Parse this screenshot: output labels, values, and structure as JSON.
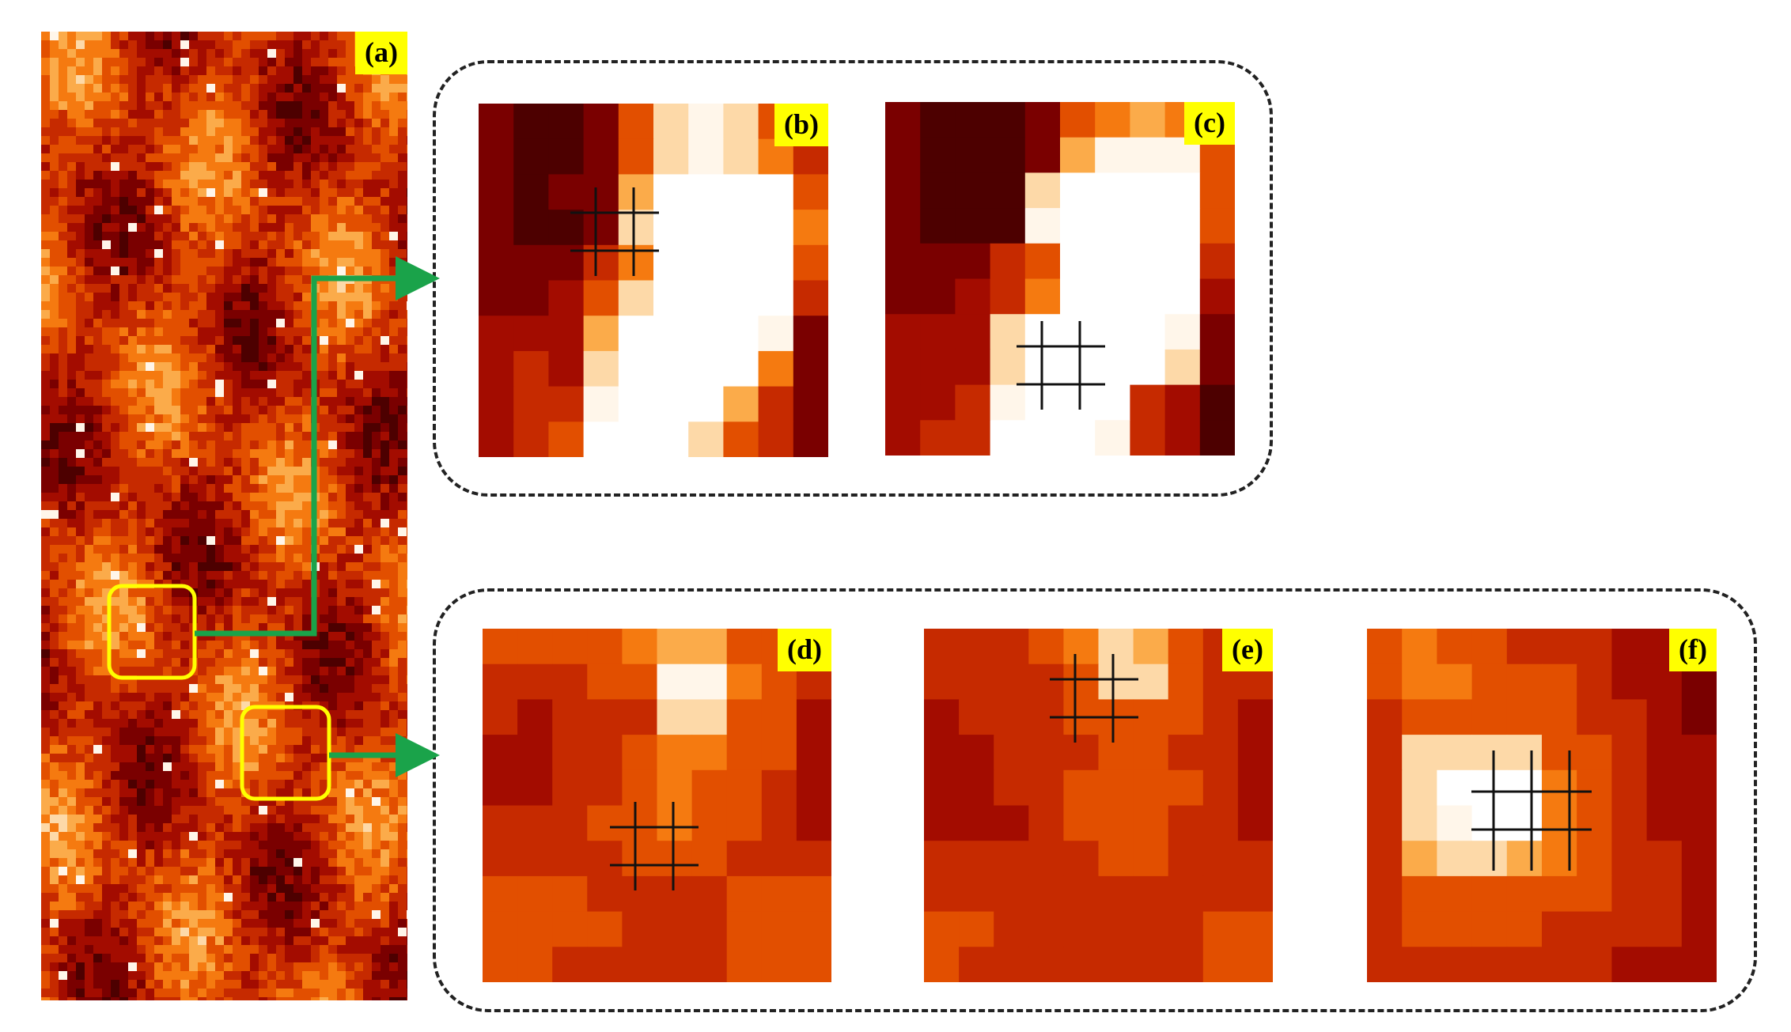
{
  "panels": [
    {
      "id": "a",
      "label": "(a)"
    },
    {
      "id": "b",
      "label": "(b)"
    },
    {
      "id": "c",
      "label": "(c)"
    },
    {
      "id": "d",
      "label": "(d)"
    },
    {
      "id": "e",
      "label": "(e)"
    },
    {
      "id": "f",
      "label": "(f)"
    }
  ],
  "colors": {
    "label_bg": "#ffff00",
    "highlight_box": "#ffff00",
    "arrow": "#1aa34a",
    "dashed_border": "#222222",
    "grid_marker": "#111111",
    "heat_palette": [
      "#4d0000",
      "#7a0000",
      "#a30c00",
      "#c62a00",
      "#e24f00",
      "#f57a10",
      "#fbab4a",
      "#fdd9a8",
      "#fff6ea",
      "#ffffff"
    ]
  },
  "grids": {
    "b": [
      [
        1,
        0,
        0,
        1,
        4,
        7,
        8,
        7,
        4,
        4
      ],
      [
        1,
        0,
        0,
        1,
        4,
        7,
        8,
        7,
        5,
        3
      ],
      [
        1,
        0,
        1,
        1,
        6,
        9,
        9,
        9,
        9,
        4
      ],
      [
        1,
        0,
        0,
        1,
        7,
        9,
        9,
        9,
        9,
        5
      ],
      [
        1,
        1,
        1,
        3,
        5,
        9,
        9,
        9,
        9,
        4
      ],
      [
        1,
        1,
        2,
        4,
        7,
        9,
        9,
        9,
        9,
        3
      ],
      [
        2,
        2,
        2,
        6,
        9,
        9,
        9,
        9,
        8,
        1
      ],
      [
        2,
        3,
        2,
        7,
        9,
        9,
        9,
        9,
        5,
        1
      ],
      [
        2,
        3,
        3,
        8,
        9,
        9,
        9,
        6,
        3,
        1
      ],
      [
        2,
        3,
        4,
        9,
        9,
        9,
        7,
        4,
        3,
        1
      ]
    ],
    "c": [
      [
        1,
        0,
        0,
        0,
        1,
        4,
        5,
        6,
        5,
        4
      ],
      [
        1,
        0,
        0,
        0,
        1,
        6,
        8,
        8,
        8,
        4
      ],
      [
        1,
        0,
        0,
        0,
        7,
        9,
        9,
        9,
        9,
        4
      ],
      [
        1,
        0,
        0,
        0,
        8,
        9,
        9,
        9,
        9,
        4
      ],
      [
        1,
        1,
        1,
        3,
        4,
        9,
        9,
        9,
        9,
        3
      ],
      [
        1,
        1,
        2,
        3,
        5,
        9,
        9,
        9,
        9,
        2
      ],
      [
        2,
        2,
        2,
        7,
        9,
        9,
        9,
        9,
        8,
        1
      ],
      [
        2,
        2,
        2,
        7,
        9,
        9,
        9,
        9,
        7,
        1
      ],
      [
        2,
        2,
        3,
        8,
        9,
        9,
        9,
        3,
        2,
        0
      ],
      [
        2,
        3,
        3,
        9,
        9,
        9,
        8,
        3,
        2,
        0
      ]
    ],
    "d": [
      [
        4,
        4,
        4,
        4,
        5,
        6,
        6,
        4,
        4,
        3
      ],
      [
        3,
        3,
        3,
        4,
        4,
        8,
        8,
        5,
        4,
        3
      ],
      [
        3,
        2,
        3,
        3,
        3,
        7,
        7,
        4,
        4,
        2
      ],
      [
        2,
        2,
        3,
        3,
        4,
        5,
        5,
        4,
        4,
        2
      ],
      [
        2,
        2,
        3,
        3,
        4,
        5,
        4,
        4,
        3,
        2
      ],
      [
        3,
        3,
        3,
        4,
        4,
        5,
        4,
        4,
        3,
        2
      ],
      [
        3,
        3,
        3,
        3,
        4,
        4,
        4,
        3,
        3,
        3
      ],
      [
        4,
        4,
        4,
        3,
        3,
        3,
        3,
        4,
        4,
        4
      ],
      [
        4,
        4,
        4,
        4,
        3,
        3,
        3,
        4,
        4,
        4
      ],
      [
        4,
        4,
        3,
        3,
        3,
        3,
        3,
        4,
        4,
        4
      ]
    ],
    "e": [
      [
        3,
        3,
        3,
        4,
        5,
        7,
        6,
        4,
        3,
        3
      ],
      [
        3,
        3,
        3,
        3,
        4,
        7,
        7,
        4,
        3,
        3
      ],
      [
        2,
        3,
        3,
        3,
        4,
        4,
        4,
        4,
        3,
        2
      ],
      [
        2,
        2,
        3,
        3,
        3,
        4,
        4,
        3,
        3,
        2
      ],
      [
        2,
        2,
        3,
        3,
        4,
        4,
        4,
        4,
        3,
        2
      ],
      [
        2,
        2,
        2,
        3,
        4,
        4,
        4,
        3,
        3,
        2
      ],
      [
        3,
        3,
        3,
        3,
        3,
        4,
        4,
        3,
        3,
        3
      ],
      [
        3,
        3,
        3,
        3,
        3,
        3,
        3,
        3,
        3,
        3
      ],
      [
        4,
        4,
        3,
        3,
        3,
        3,
        3,
        3,
        4,
        4
      ],
      [
        4,
        3,
        3,
        3,
        3,
        3,
        3,
        3,
        4,
        4
      ]
    ],
    "f": [
      [
        4,
        5,
        4,
        4,
        3,
        3,
        3,
        2,
        2,
        1
      ],
      [
        4,
        5,
        5,
        4,
        4,
        4,
        3,
        2,
        2,
        1
      ],
      [
        3,
        4,
        4,
        4,
        4,
        4,
        3,
        3,
        2,
        1
      ],
      [
        3,
        7,
        7,
        7,
        7,
        4,
        4,
        3,
        2,
        2
      ],
      [
        3,
        7,
        9,
        9,
        9,
        5,
        4,
        3,
        2,
        2
      ],
      [
        3,
        7,
        8,
        9,
        9,
        5,
        4,
        3,
        2,
        2
      ],
      [
        3,
        6,
        7,
        7,
        6,
        5,
        4,
        3,
        3,
        2
      ],
      [
        3,
        4,
        4,
        4,
        4,
        4,
        4,
        3,
        3,
        2
      ],
      [
        3,
        4,
        4,
        4,
        4,
        3,
        3,
        3,
        3,
        2
      ],
      [
        3,
        3,
        3,
        3,
        3,
        3,
        3,
        2,
        2,
        2
      ]
    ]
  }
}
